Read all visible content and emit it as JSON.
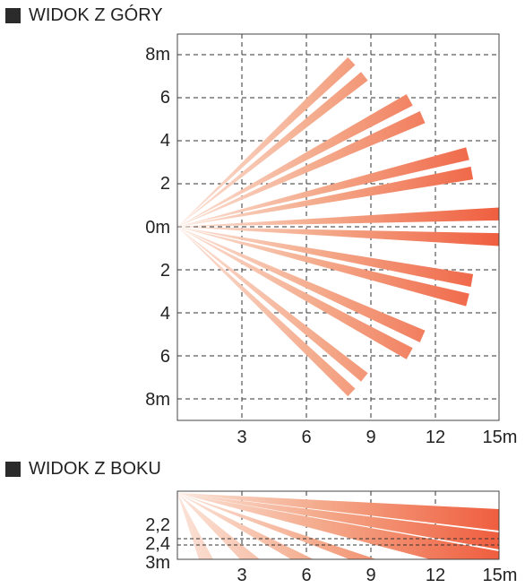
{
  "top_view": {
    "title": "WIDOK Z GÓRY",
    "y_ticks": [
      "8m",
      "6",
      "4",
      "2",
      "0m",
      "2",
      "4",
      "6",
      "8m"
    ],
    "x_ticks": [
      "3",
      "6",
      "9",
      "12",
      "15m"
    ]
  },
  "side_view": {
    "title": "WIDOK Z BOKU",
    "y_ticks": [
      "2,2",
      "2,4",
      "3m"
    ],
    "x_ticks": [
      "3",
      "6",
      "9",
      "12",
      "15m"
    ]
  },
  "colors": {
    "beam_light": "#f6c3ad",
    "beam_dark": "#ef5e3f",
    "grid": "#333333",
    "frame": "#444444"
  },
  "chart_data": [
    {
      "type": "diagram",
      "title": "WIDOK Z GÓRY",
      "x_range": [
        0,
        15
      ],
      "y_range": [
        -9,
        9
      ],
      "beams_top": [
        {
          "end_x": 8.1,
          "end_y": 7.7,
          "width_end": 0.5
        },
        {
          "end_x": 8.7,
          "end_y": 7.0,
          "width_end": 0.5
        },
        {
          "end_x": 10.8,
          "end_y": 5.9,
          "width_end": 0.6
        },
        {
          "end_x": 11.4,
          "end_y": 5.1,
          "width_end": 0.6
        },
        {
          "end_x": 13.5,
          "end_y": 3.4,
          "width_end": 0.6
        },
        {
          "end_x": 13.7,
          "end_y": 2.5,
          "width_end": 0.6
        },
        {
          "end_x": 15.0,
          "end_y": 0.6,
          "width_end": 0.6
        },
        {
          "end_x": 15.0,
          "end_y": -0.6,
          "width_end": 0.6
        },
        {
          "end_x": 13.7,
          "end_y": -2.5,
          "width_end": 0.6
        },
        {
          "end_x": 13.5,
          "end_y": -3.4,
          "width_end": 0.6
        },
        {
          "end_x": 11.4,
          "end_y": -5.1,
          "width_end": 0.6
        },
        {
          "end_x": 10.8,
          "end_y": -5.9,
          "width_end": 0.6
        },
        {
          "end_x": 8.7,
          "end_y": -7.0,
          "width_end": 0.5
        },
        {
          "end_x": 8.1,
          "end_y": -7.7,
          "width_end": 0.5
        }
      ]
    },
    {
      "type": "diagram",
      "title": "WIDOK Z BOKU",
      "x_range": [
        0,
        15
      ],
      "y_ticks": [
        2.2,
        2.4,
        3
      ]
    }
  ]
}
